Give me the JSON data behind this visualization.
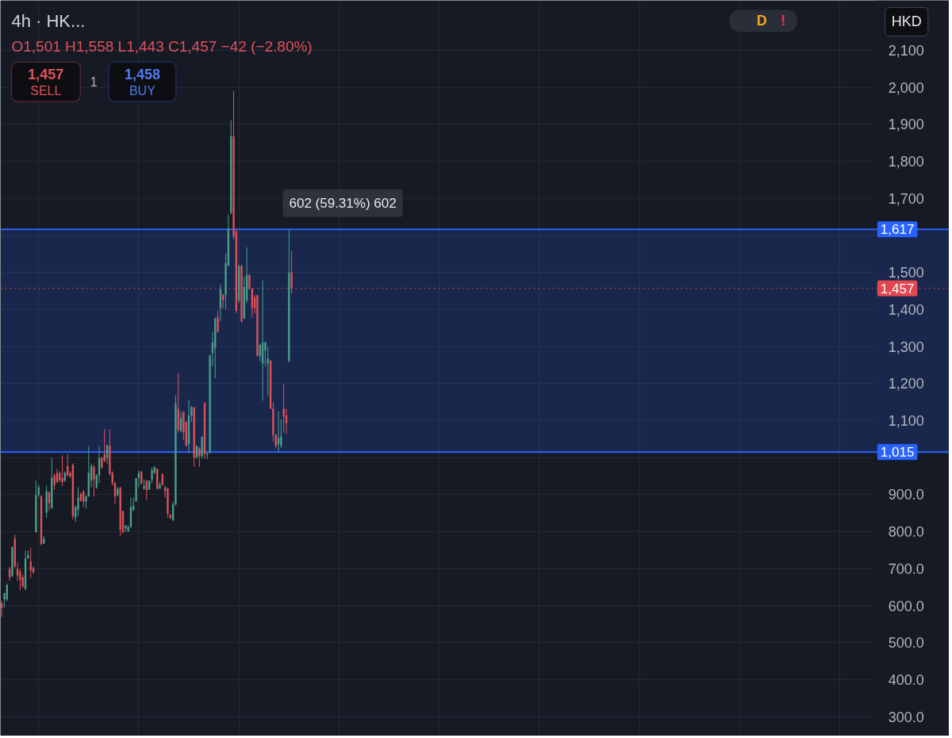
{
  "chart_data": {
    "type": "candlestick",
    "title": "4h · HK...",
    "subtitle": "O1,501 H1,558 L1,443 C1,457 −42 (−2.80%)",
    "ylabel": "HKD",
    "annotations": [
      "1,457",
      "SELL",
      "1",
      "1,458",
      "BUY",
      "D",
      "!"
    ],
    "categories": [
      null,
      null,
      null,
      null,
      null,
      null,
      null,
      null,
      null,
      null,
      null,
      null,
      null,
      null,
      null,
      null,
      null,
      null,
      null,
      null,
      null,
      null,
      null,
      null,
      null,
      null,
      null,
      null,
      null,
      null,
      null,
      null,
      null,
      null,
      null,
      null,
      null,
      null,
      null,
      null,
      null,
      null,
      null,
      null,
      null,
      null,
      null,
      null,
      null,
      null,
      null,
      null,
      null,
      null,
      null,
      null,
      null,
      null,
      null,
      null,
      null,
      null,
      null,
      null,
      null,
      null,
      null,
      null,
      null,
      null,
      null,
      null,
      null,
      null,
      null,
      null,
      null,
      null,
      null,
      null,
      null,
      null,
      null,
      null,
      null,
      null,
      null,
      null,
      null,
      null,
      null,
      null,
      null,
      null,
      null,
      null,
      null,
      null,
      null,
      null,
      null,
      null,
      null,
      null,
      null,
      null,
      null,
      null,
      null,
      null,
      null,
      null,
      null,
      null,
      null,
      null,
      null,
      null,
      null,
      null,
      null,
      null,
      null,
      null,
      null,
      null,
      null,
      null,
      null,
      null,
      null,
      null,
      null,
      null,
      null,
      null,
      null,
      null,
      null,
      null,
      null,
      null,
      null,
      null,
      null,
      null,
      null,
      null,
      null,
      null,
      null,
      null,
      null,
      null,
      null,
      null,
      null,
      null,
      null,
      null,
      null,
      null,
      null,
      null,
      null,
      null,
      null,
      null,
      null,
      null,
      null,
      null,
      null,
      null,
      null,
      null,
      null,
      null,
      null,
      null,
      null,
      null,
      null,
      null,
      null,
      null,
      null,
      null,
      null,
      null,
      null,
      null,
      null,
      null,
      null,
      null,
      null,
      null,
      null,
      null,
      null,
      null,
      null,
      null,
      null,
      null,
      null,
      null,
      null,
      null,
      null,
      null,
      null,
      null,
      null,
      null,
      null,
      null,
      null,
      null,
      null,
      null,
      null,
      null,
      null,
      null,
      null,
      null,
      null,
      null,
      null,
      null,
      null,
      null,
      null,
      null,
      null,
      null,
      null,
      null,
      null,
      null,
      null,
      null,
      null,
      null,
      null,
      null,
      null,
      null,
      null,
      null,
      null,
      null,
      null,
      null,
      null,
      null,
      null,
      null,
      null,
      null,
      null,
      null,
      null,
      null,
      null,
      null,
      null,
      null,
      null,
      null,
      null,
      null,
      null,
      null,
      null,
      null,
      null,
      null,
      null,
      null,
      null,
      null,
      null,
      null,
      null,
      null,
      null,
      null,
      null,
      null,
      null,
      null,
      null,
      null,
      null,
      null,
      null,
      null,
      null,
      null,
      null,
      null,
      null,
      null,
      null,
      null,
      null,
      null,
      null,
      null,
      null,
      null,
      null,
      null,
      null,
      null,
      null,
      null,
      null,
      null,
      null,
      null,
      null,
      null,
      null,
      null,
      null,
      null,
      null,
      null,
      null,
      null,
      null,
      null,
      null,
      null,
      null,
      null,
      null,
      null,
      null,
      null,
      null,
      null,
      null,
      null,
      null,
      null,
      null,
      null,
      null,
      null,
      null,
      null,
      null,
      null,
      null,
      null
    ],
    "ohlc": [
      [
        606,
        613,
        570,
        595
      ],
      [
        617,
        634,
        595,
        634
      ],
      [
        617,
        660,
        613,
        656
      ],
      [
        699,
        706,
        667,
        677
      ],
      [
        681,
        759,
        677,
        759
      ],
      [
        781,
        792,
        702,
        706
      ],
      [
        699,
        717,
        667,
        681
      ],
      [
        692,
        699,
        642,
        670
      ],
      [
        677,
        684,
        649,
        652
      ],
      [
        645,
        749,
        642,
        727
      ],
      [
        727,
        749,
        727,
        738
      ],
      [
        720,
        756,
        674,
        695
      ],
      [
        702,
        706,
        686,
        690
      ],
      [
        799,
        938,
        797,
        899
      ],
      [
        899,
        927,
        892,
        920
      ],
      [
        895,
        899,
        763,
        767
      ],
      [
        767,
        788,
        767,
        781
      ],
      [
        852,
        924,
        838,
        909
      ],
      [
        906,
        909,
        856,
        877
      ],
      [
        863,
        999,
        863,
        945
      ],
      [
        952,
        956,
        913,
        927
      ],
      [
        959,
        970,
        931,
        934
      ],
      [
        959,
        963,
        934,
        938
      ],
      [
        945,
        1006,
        924,
        934
      ],
      [
        938,
        963,
        934,
        959
      ],
      [
        977,
        1009,
        949,
        952
      ],
      [
        959,
        963,
        945,
        949
      ],
      [
        981,
        984,
        834,
        842
      ],
      [
        838,
        870,
        827,
        866
      ],
      [
        859,
        920,
        842,
        892
      ],
      [
        902,
        906,
        881,
        884
      ],
      [
        909,
        913,
        866,
        881
      ],
      [
        881,
        899,
        863,
        895
      ],
      [
        895,
        1031,
        895,
        959
      ],
      [
        938,
        984,
        920,
        977
      ],
      [
        974,
        981,
        895,
        941
      ],
      [
        920,
        956,
        916,
        952
      ],
      [
        952,
        1031,
        931,
        999
      ],
      [
        999,
        1002,
        970,
        974
      ],
      [
        1009,
        1077,
        988,
        991
      ],
      [
        999,
        1034,
        984,
        1034
      ],
      [
        1031,
        1077,
        952,
        956
      ],
      [
        959,
        963,
        924,
        931
      ],
      [
        931,
        934,
        874,
        895
      ],
      [
        899,
        920,
        895,
        916
      ],
      [
        920,
        920,
        788,
        806
      ],
      [
        856,
        856,
        795,
        799
      ],
      [
        809,
        817,
        799,
        817
      ],
      [
        802,
        817,
        799,
        813
      ],
      [
        813,
        892,
        809,
        866
      ],
      [
        859,
        892,
        856,
        870
      ],
      [
        881,
        945,
        881,
        945
      ],
      [
        945,
        966,
        920,
        959
      ],
      [
        963,
        963,
        927,
        931
      ],
      [
        916,
        941,
        913,
        924
      ],
      [
        938,
        938,
        884,
        913
      ],
      [
        913,
        938,
        913,
        938
      ],
      [
        941,
        974,
        931,
        966
      ],
      [
        959,
        977,
        956,
        974
      ],
      [
        970,
        970,
        913,
        916
      ],
      [
        916,
        934,
        916,
        927
      ],
      [
        956,
        956,
        924,
        927
      ],
      [
        920,
        924,
        892,
        909
      ],
      [
        916,
        920,
        838,
        849
      ],
      [
        845,
        849,
        834,
        838
      ],
      [
        831,
        881,
        829,
        874
      ],
      [
        874,
        1168,
        870,
        1147
      ],
      [
        1132,
        1229,
        1068,
        1075
      ],
      [
        1071,
        1125,
        1071,
        1107
      ],
      [
        1122,
        1125,
        1047,
        1068
      ],
      [
        1097,
        1097,
        1029,
        1033
      ],
      [
        1036,
        1157,
        1011,
        1114
      ],
      [
        1114,
        1140,
        1097,
        1136
      ],
      [
        1136,
        1136,
        975,
        1000
      ],
      [
        1000,
        1032,
        997,
        1032
      ],
      [
        1025,
        1029,
        975,
        1004
      ],
      [
        1004,
        1057,
        997,
        1057
      ],
      [
        1147,
        1150,
        997,
        1011
      ],
      [
        1008,
        1012,
        996,
        1012
      ],
      [
        1014,
        1279,
        1011,
        1275
      ],
      [
        1282,
        1340,
        1247,
        1311
      ],
      [
        1297,
        1379,
        1215,
        1375
      ],
      [
        1379,
        1397,
        1336,
        1340
      ],
      [
        1404,
        1468,
        1368,
        1454
      ],
      [
        1439,
        1443,
        1404,
        1425
      ],
      [
        1439,
        1550,
        1400,
        1525
      ],
      [
        1518,
        1657,
        1518,
        1618
      ],
      [
        1661,
        1911,
        1657,
        1868
      ],
      [
        1868,
        1990,
        1590,
        1597
      ],
      [
        1611,
        1618,
        1390,
        1397
      ],
      [
        1425,
        1521,
        1418,
        1518
      ],
      [
        1518,
        1521,
        1364,
        1368
      ],
      [
        1375,
        1489,
        1375,
        1461
      ],
      [
        1425,
        1568,
        1418,
        1493
      ],
      [
        1493,
        1496,
        1454,
        1457
      ],
      [
        1457,
        1457,
        1379,
        1404
      ],
      [
        1432,
        1439,
        1389,
        1404
      ],
      [
        1439,
        1439,
        1272,
        1275
      ],
      [
        1275,
        1307,
        1261,
        1304
      ],
      [
        1254,
        1479,
        1154,
        1311
      ],
      [
        1289,
        1314,
        1247,
        1311
      ],
      [
        1254,
        1300,
        1168,
        1268
      ],
      [
        1261,
        1264,
        1132,
        1132
      ],
      [
        1132,
        1150,
        1043,
        1061
      ],
      [
        1061,
        1064,
        1025,
        1032
      ],
      [
        1036,
        1125,
        1015,
        1054
      ],
      [
        1032,
        1104,
        1025,
        1057
      ],
      [
        1132,
        1200,
        1068,
        1111
      ],
      [
        1114,
        1132,
        1064,
        1093
      ],
      [
        1261,
        1617,
        1257,
        1499
      ],
      [
        1501,
        1558,
        1443,
        1457
      ],
      null,
      null,
      null,
      null,
      null,
      null,
      null,
      null,
      null,
      null,
      null,
      null,
      null,
      null,
      null,
      null,
      null,
      null,
      null,
      null,
      null,
      null,
      null,
      null,
      null,
      null,
      null,
      null,
      null,
      null,
      null,
      null,
      null,
      null,
      null,
      null,
      null,
      null,
      null,
      null,
      null,
      null,
      null,
      null,
      null,
      null,
      null,
      null,
      null,
      null,
      null,
      null,
      null,
      null,
      null,
      null,
      null,
      null,
      null,
      null,
      null,
      null,
      null,
      null,
      null,
      null,
      null,
      null,
      null,
      null,
      null,
      null,
      null,
      null,
      null,
      null,
      null,
      null,
      null,
      null,
      null,
      null,
      null,
      null,
      null,
      null,
      null,
      null,
      null,
      null,
      null,
      null,
      null,
      null,
      null,
      null,
      null,
      null,
      null,
      null,
      null,
      null,
      null,
      null,
      null,
      null,
      null,
      null,
      null,
      null,
      null,
      null,
      null,
      null,
      null,
      null,
      null,
      null,
      null,
      null,
      null,
      null,
      null,
      null,
      null,
      null,
      null,
      null,
      null,
      null,
      null,
      null,
      null,
      null,
      null,
      null,
      null,
      null,
      null,
      null,
      null,
      null,
      null,
      null,
      null,
      null,
      null,
      null,
      null,
      null,
      null,
      null,
      null,
      null,
      null,
      null,
      null,
      null,
      null,
      null,
      null,
      null,
      null,
      null,
      null,
      null,
      null,
      null,
      null,
      null,
      null,
      null,
      null,
      null,
      null,
      null,
      null,
      null,
      null,
      null,
      null,
      null,
      null,
      null,
      null,
      null,
      null,
      null,
      null,
      null,
      null,
      null,
      null,
      null,
      null,
      null,
      null,
      null,
      null,
      null,
      null,
      null,
      null,
      null,
      null,
      null,
      null,
      null,
      null,
      null,
      null,
      null,
      null,
      null,
      null,
      null,
      null,
      null,
      null,
      null,
      null,
      null,
      null,
      null,
      null,
      null,
      null,
      null,
      null,
      null,
      null,
      null,
      null,
      null,
      null,
      null,
      null,
      null,
      null,
      null,
      null,
      null,
      null,
      null,
      null,
      null,
      null,
      null,
      null
    ],
    "colors": [
      "#e0525a",
      "#4ba08d",
      "#4ba08d",
      "#e0525a",
      "#4ba08d",
      "#e0525a",
      "#e0525a",
      "#e0525a",
      "#e0525a",
      "#4ba08d",
      "#4ba08d",
      "#e0525a",
      "#e0525a",
      "#4ba08d",
      "#4ba08d",
      "#e0525a",
      "#4ba08d",
      "#4ba08d",
      "#e0525a",
      "#4ba08d",
      "#e0525a",
      "#e0525a",
      "#e0525a",
      "#e0525a",
      "#4ba08d",
      "#e0525a",
      "#e0525a",
      "#e0525a",
      "#4ba08d",
      "#4ba08d",
      "#e0525a",
      "#e0525a",
      "#4ba08d",
      "#4ba08d",
      "#4ba08d",
      "#e0525a",
      "#4ba08d",
      "#4ba08d",
      "#e0525a",
      "#e0525a",
      "#4ba08d",
      "#e0525a",
      "#e0525a",
      "#e0525a",
      "#4ba08d",
      "#e0525a",
      "#e0525a",
      "#4ba08d",
      "#4ba08d",
      "#4ba08d",
      "#4ba08d",
      "#4ba08d",
      "#4ba08d",
      "#e0525a",
      "#4ba08d",
      "#e0525a",
      "#4ba08d",
      "#4ba08d",
      "#4ba08d",
      "#e0525a",
      "#4ba08d",
      "#e0525a",
      "#e0525a",
      "#e0525a",
      "#e0525a",
      "#4ba08d",
      "#4ba08d",
      "#e0525a",
      "#4ba08d",
      "#e0525a",
      "#e0525a",
      "#4ba08d",
      "#4ba08d",
      "#e0525a",
      "#4ba08d",
      "#e0525a",
      "#4ba08d",
      "#e0525a",
      "#4ba08d",
      "#4ba08d",
      "#4ba08d",
      "#4ba08d",
      "#e0525a",
      "#4ba08d",
      "#e0525a",
      "#4ba08d",
      "#4ba08d",
      "#4ba08d",
      "#e0525a",
      "#e0525a",
      "#4ba08d",
      "#e0525a",
      "#4ba08d",
      "#4ba08d",
      "#e0525a",
      "#e0525a",
      "#e0525a",
      "#e0525a",
      "#4ba08d",
      "#4ba08d",
      "#4ba08d",
      "#4ba08d",
      "#e0525a",
      "#e0525a",
      "#e0525a",
      "#4ba08d",
      "#4ba08d",
      "#e0525a",
      "#e0525a",
      "#4ba08d",
      "#e0525a",
      null,
      null,
      null,
      null,
      null,
      null,
      null,
      null,
      null,
      null,
      null,
      null,
      null,
      null,
      null,
      null,
      null,
      null,
      null,
      null,
      null,
      null,
      null,
      null,
      null,
      null,
      null,
      null,
      null,
      null,
      null,
      null,
      null,
      null,
      null,
      null,
      null,
      null,
      null,
      null,
      null,
      null,
      null,
      null,
      null,
      null,
      null,
      null,
      null,
      null,
      null,
      null,
      null,
      null,
      null,
      null,
      null,
      null,
      null,
      null,
      null,
      null,
      null,
      null,
      null,
      null,
      null,
      null,
      null,
      null,
      null,
      null,
      null,
      null,
      null,
      null,
      null,
      null,
      null,
      null,
      null,
      null,
      null,
      null,
      null,
      null,
      null,
      null,
      null,
      null,
      null,
      null,
      null,
      null,
      null,
      null,
      null,
      null,
      null,
      null,
      null,
      null,
      null,
      null,
      null,
      null,
      null,
      null,
      null,
      null,
      null,
      null,
      null,
      null,
      null,
      null,
      null,
      null,
      null,
      null,
      null,
      null,
      null,
      null,
      null,
      null,
      null,
      null,
      null,
      null,
      null,
      null,
      null,
      null,
      null,
      null,
      null,
      null,
      null,
      null,
      null,
      null,
      null,
      null,
      null,
      null,
      null,
      null,
      null,
      null,
      null,
      null,
      null,
      null,
      null,
      null,
      null,
      null,
      null,
      null,
      null,
      null,
      null,
      null,
      null,
      null,
      null,
      null,
      null,
      null,
      null,
      null,
      null,
      null,
      null,
      null,
      null,
      null,
      null,
      null,
      null,
      null,
      null,
      null,
      null,
      null,
      null,
      null,
      null,
      null,
      null,
      null,
      null,
      null,
      null,
      null,
      null,
      null,
      null,
      null,
      null,
      null,
      null,
      null,
      null,
      null,
      null,
      null,
      null,
      null,
      null,
      null,
      null,
      null,
      null,
      null,
      null,
      null,
      null,
      null,
      null,
      null,
      null,
      null,
      null,
      null,
      null,
      null,
      null,
      null,
      null,
      null,
      null,
      null,
      null,
      null,
      null,
      null,
      null,
      null,
      null,
      null,
      null,
      null,
      null,
      null,
      null,
      null,
      null
    ],
    "ylim": [
      248,
      2235
    ],
    "yticks": [
      {
        "value": 300,
        "label": "300.0"
      },
      {
        "value": 400,
        "label": "400.0"
      },
      {
        "value": 500,
        "label": "500.0"
      },
      {
        "value": 600,
        "label": "600.0"
      },
      {
        "value": 700,
        "label": "700.0"
      },
      {
        "value": 800,
        "label": "800.0"
      },
      {
        "value": 900,
        "label": "900.0"
      },
      {
        "value": 1000,
        "label": null
      },
      {
        "value": 1100,
        "label": "1,100"
      },
      {
        "value": 1200,
        "label": "1,200"
      },
      {
        "value": 1300,
        "label": "1,300"
      },
      {
        "value": 1400,
        "label": "1,400"
      },
      {
        "value": 1500,
        "label": "1,500"
      },
      {
        "value": 1600,
        "label": null
      },
      {
        "value": 1700,
        "label": "1,700"
      },
      {
        "value": 1800,
        "label": "1,800"
      },
      {
        "value": 1900,
        "label": "1,900"
      },
      {
        "value": 2000,
        "label": "2,000"
      },
      {
        "value": 2100,
        "label": "2,100"
      }
    ],
    "tick_labels": "y",
    "grid": true,
    "ref_lines": [
      {
        "axis": "y",
        "value": 1457,
        "label": "1,457",
        "color": "#e0474f",
        "line_style": "dotted"
      },
      {
        "axis": "y",
        "value": 1617,
        "label": "1,617",
        "color": "#2962ff",
        "line_style": "solid"
      },
      {
        "axis": "y",
        "value": 1015,
        "label": "1,015",
        "color": "#2962ff",
        "line_style": "solid"
      }
    ],
    "bands": [
      {
        "axis": "y",
        "from": 1015,
        "to": 1617,
        "label": "602 (59.31%) 602",
        "color": "#2962ff"
      }
    ]
  }
}
